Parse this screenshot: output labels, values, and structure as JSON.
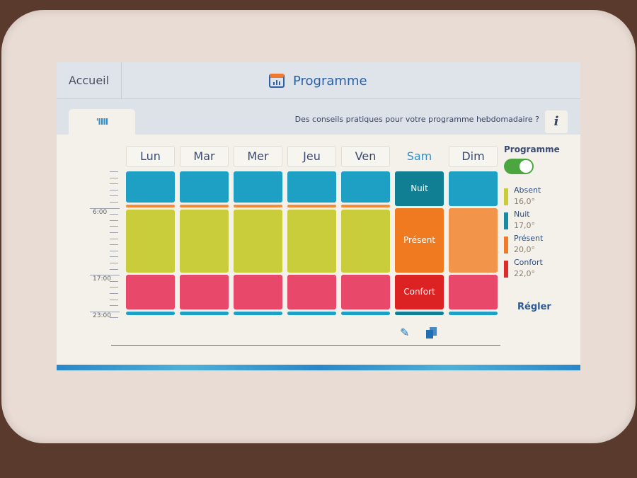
{
  "header": {
    "home_label": "Accueil",
    "title": "Programme",
    "title_icon": "calendar-chart-icon"
  },
  "subbar": {
    "tab_icon_label": "'IIII",
    "tips": "Des conseils pratiques pour votre programme hebdomadaire ?",
    "info_label": "i"
  },
  "time_labels": [
    "6:00",
    "17:00",
    "23:00"
  ],
  "days": [
    {
      "label": "Lun",
      "selected": false,
      "segments": [
        [
          "Nuit",
          0,
          5.5
        ],
        [
          "Présent",
          5.5,
          6.3
        ],
        [
          "Absent",
          6.3,
          17
        ],
        [
          "Confort",
          17,
          23
        ],
        [
          "Nuit",
          23,
          24
        ]
      ]
    },
    {
      "label": "Mar",
      "selected": false,
      "segments": [
        [
          "Nuit",
          0,
          5.5
        ],
        [
          "Présent",
          5.5,
          6.3
        ],
        [
          "Absent",
          6.3,
          17
        ],
        [
          "Confort",
          17,
          23
        ],
        [
          "Nuit",
          23,
          24
        ]
      ]
    },
    {
      "label": "Mer",
      "selected": false,
      "segments": [
        [
          "Nuit",
          0,
          5.5
        ],
        [
          "Présent",
          5.5,
          6.3
        ],
        [
          "Absent",
          6.3,
          17
        ],
        [
          "Confort",
          17,
          23
        ],
        [
          "Nuit",
          23,
          24
        ]
      ]
    },
    {
      "label": "Jeu",
      "selected": false,
      "segments": [
        [
          "Nuit",
          0,
          5.5
        ],
        [
          "Présent",
          5.5,
          6.3
        ],
        [
          "Absent",
          6.3,
          17
        ],
        [
          "Confort",
          17,
          23
        ],
        [
          "Nuit",
          23,
          24
        ]
      ]
    },
    {
      "label": "Ven",
      "selected": false,
      "segments": [
        [
          "Nuit",
          0,
          5.5
        ],
        [
          "Présent",
          5.5,
          6.3
        ],
        [
          "Absent",
          6.3,
          17
        ],
        [
          "Confort",
          17,
          23
        ],
        [
          "Nuit",
          23,
          24
        ]
      ]
    },
    {
      "label": "Sam",
      "selected": true,
      "segments": [
        [
          "Nuit",
          0,
          6
        ],
        [
          "Présent",
          6,
          17
        ],
        [
          "Confort",
          17,
          23
        ],
        [
          "Nuit",
          23,
          24
        ]
      ]
    },
    {
      "label": "Dim",
      "selected": false,
      "segments": [
        [
          "Nuit",
          0,
          6
        ],
        [
          "Présent",
          6,
          17
        ],
        [
          "Confort",
          17,
          23
        ],
        [
          "Nuit",
          23,
          24
        ]
      ]
    }
  ],
  "legend": {
    "title": "Programme",
    "toggle_on": true,
    "modes": [
      {
        "name": "Absent",
        "temp": "16,0°",
        "color": "#c8cc3a"
      },
      {
        "name": "Nuit",
        "temp": "17,0°",
        "color": "#1a8aa0"
      },
      {
        "name": "Présent",
        "temp": "20,0°",
        "color": "#ee7a2a"
      },
      {
        "name": "Confort",
        "temp": "22,0°",
        "color": "#dd2a2a"
      }
    ],
    "adjust_label": "Régler"
  },
  "colors": {
    "normal": {
      "Nuit": "#1ea0c4",
      "Absent": "#c9cd3c",
      "Présent": "#ef8d3c",
      "Confort": "#e8486a"
    },
    "selected": {
      "Nuit": "#117f93",
      "Absent": "#b8bc2c",
      "Présent": "#f07a20",
      "Confort": "#dc2222"
    },
    "sunday_present": "#f2944a"
  },
  "actions": {
    "edit_icon": "pencil-icon",
    "copy_icon": "copy-icon"
  }
}
